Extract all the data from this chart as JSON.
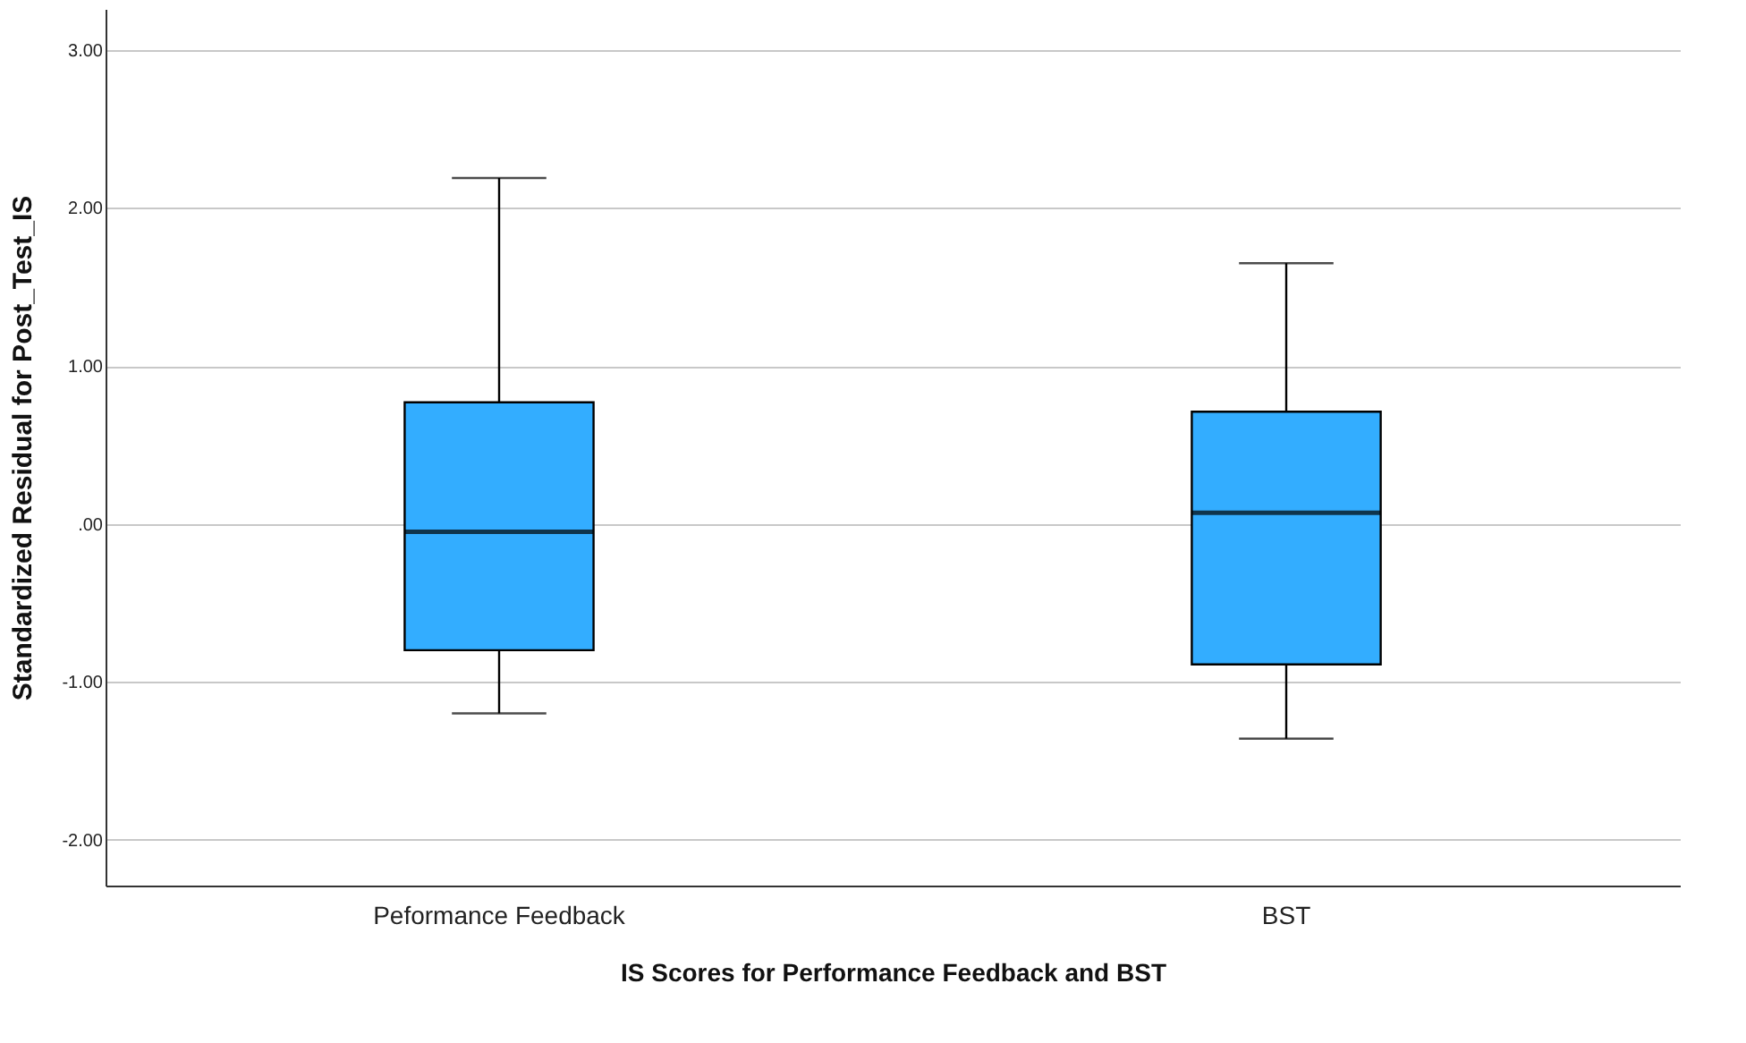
{
  "chart_data": {
    "type": "box",
    "xlabel": "IS Scores for Performance Feedback and BST",
    "ylabel": "Standardized Residual for Post_Test_IS",
    "categories": [
      "Peformance Feedback",
      "BST"
    ],
    "series": [
      {
        "color": "#33adff",
        "boxes": [
          {
            "low": -1.2,
            "q1": -0.8,
            "median": -0.05,
            "q3": 0.77,
            "high": 2.19
          },
          {
            "low": -1.36,
            "q1": -0.89,
            "median": 0.07,
            "q3": 0.71,
            "high": 1.65
          }
        ]
      }
    ],
    "ylim": [
      -2.29,
      3.26
    ],
    "yticks": [
      {
        "value": -2,
        "label": "-2.00"
      },
      {
        "value": -1,
        "label": "-1.00"
      },
      {
        "value": 0,
        "label": ".00"
      },
      {
        "value": 1,
        "label": "1.00"
      },
      {
        "value": 2,
        "label": "2.00"
      },
      {
        "value": 3,
        "label": "3.00"
      }
    ],
    "grid": "y"
  }
}
